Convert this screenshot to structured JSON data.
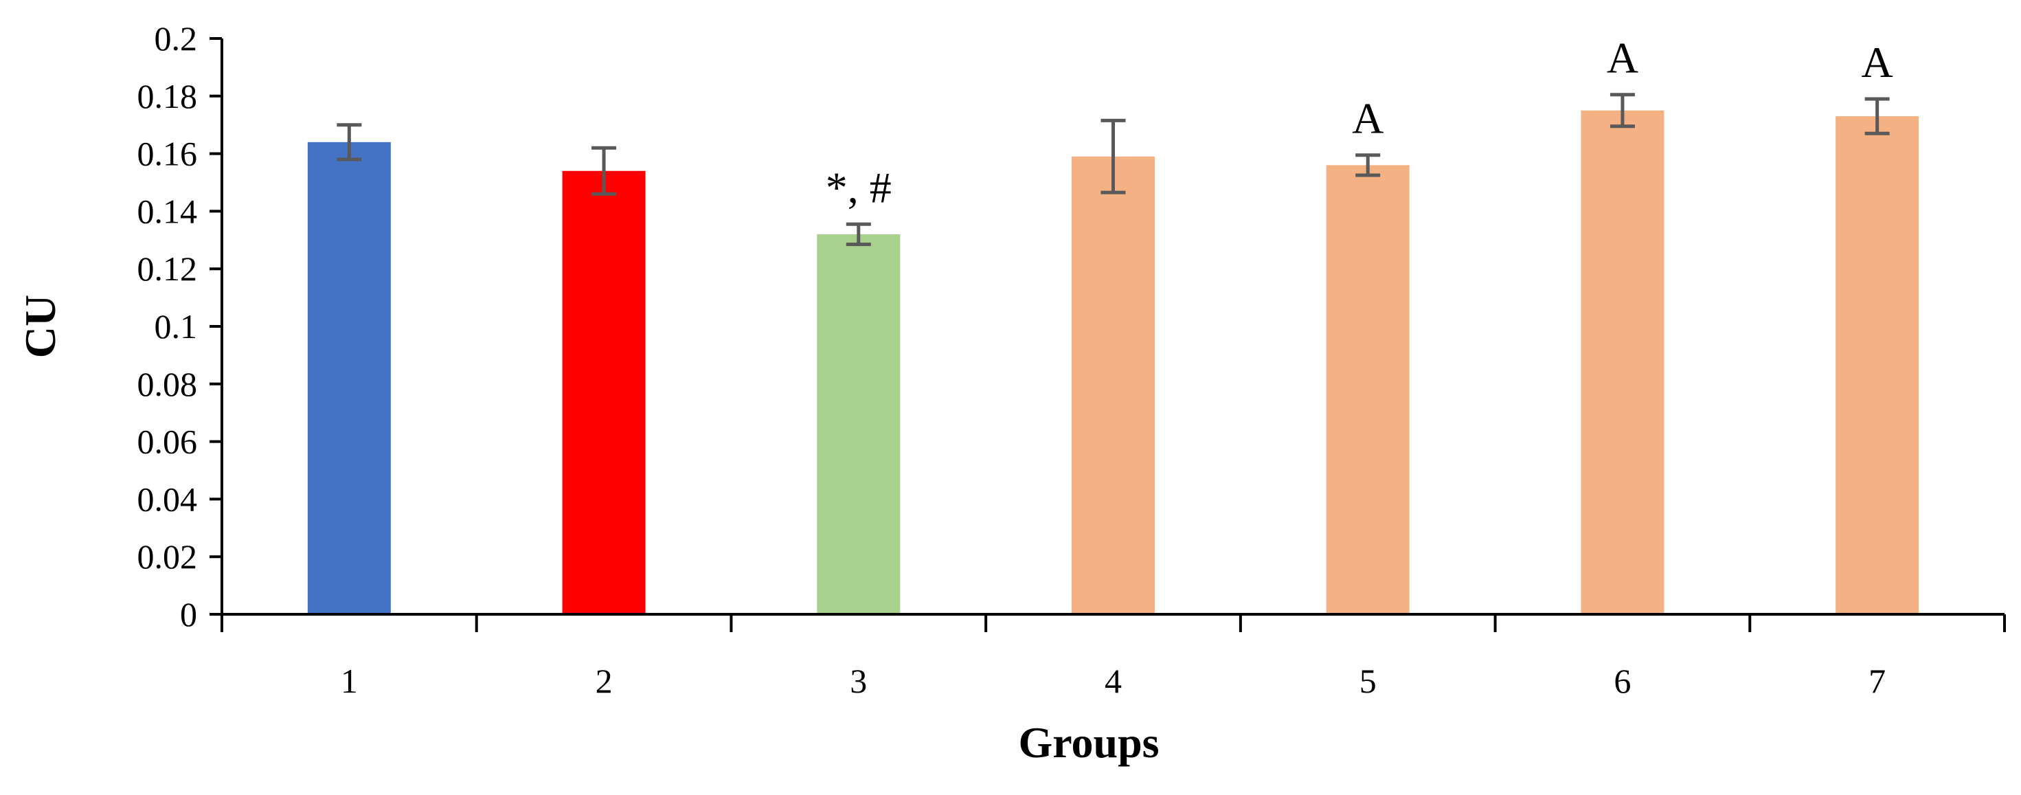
{
  "chart_data": {
    "type": "bar",
    "title": "",
    "xlabel": "Groups",
    "ylabel": "CU",
    "ylim": [
      0,
      0.2
    ],
    "yticks": [
      0,
      0.02,
      0.04,
      0.06,
      0.08,
      0.1,
      0.12,
      0.14,
      0.16,
      0.18,
      0.2
    ],
    "ytick_labels": [
      "0",
      "0.02",
      "0.04",
      "0.06",
      "0.08",
      "0.1",
      "0.12",
      "0.14",
      "0.16",
      "0.18",
      "0.2"
    ],
    "categories": [
      "1",
      "2",
      "3",
      "4",
      "5",
      "6",
      "7"
    ],
    "values": [
      0.164,
      0.154,
      0.132,
      0.159,
      0.156,
      0.175,
      0.173
    ],
    "errors": [
      0.006,
      0.008,
      0.0035,
      0.0125,
      0.0035,
      0.0055,
      0.006
    ],
    "annotations": [
      "",
      "",
      "*, #",
      "",
      "A",
      "A",
      "A"
    ],
    "colors": [
      "#4472C4",
      "#FF0000",
      "#A9D18E",
      "#F4B183",
      "#F4B183",
      "#F4B183",
      "#F4B183"
    ],
    "error_bar_color": "#595959",
    "axis_color": "#000000",
    "grid": false,
    "legend": "none"
  }
}
